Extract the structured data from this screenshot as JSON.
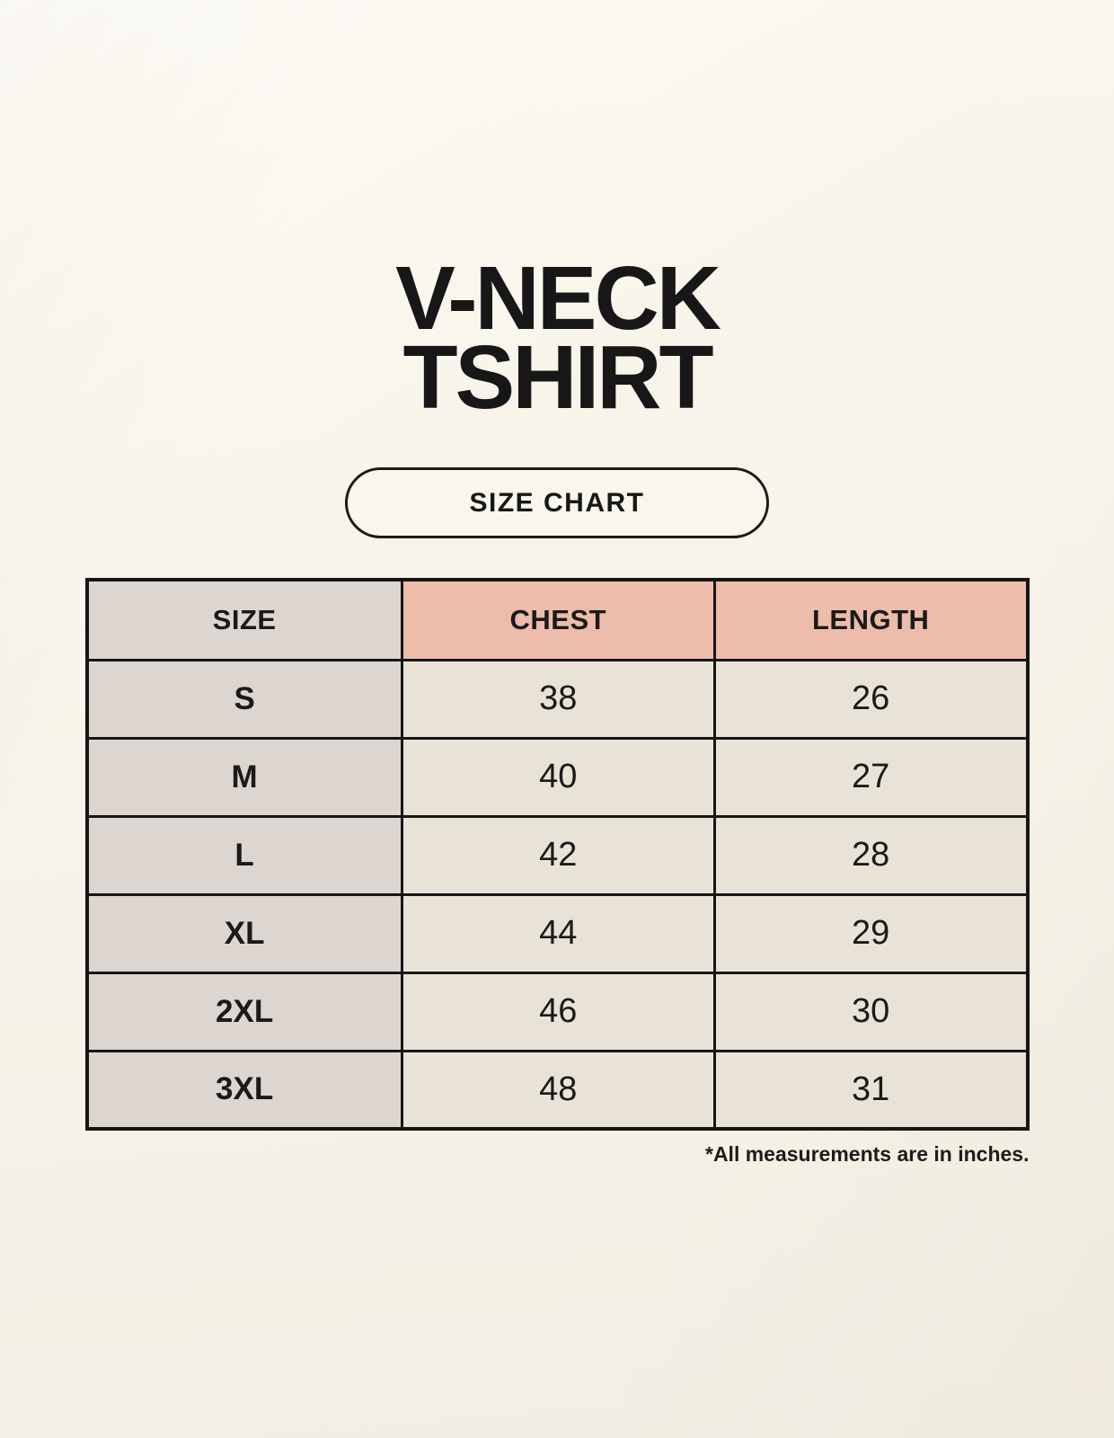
{
  "title": {
    "line1": "V-NECK",
    "line2": "TSHIRT"
  },
  "size_chart_button": {
    "label": "SIZE CHART"
  },
  "table": {
    "headers": [
      "SIZE",
      "CHEST",
      "LENGTH"
    ],
    "rows": [
      {
        "size": "S",
        "chest": "38",
        "length": "26"
      },
      {
        "size": "M",
        "chest": "40",
        "length": "27"
      },
      {
        "size": "L",
        "chest": "42",
        "length": "28"
      },
      {
        "size": "XL",
        "chest": "44",
        "length": "29"
      },
      {
        "size": "2XL",
        "chest": "46",
        "length": "30"
      },
      {
        "size": "3XL",
        "chest": "48",
        "length": "31"
      }
    ]
  },
  "footnote": "*All measurements are in inches.",
  "colors": {
    "background": "#f8f4ea",
    "table_border": "#161616",
    "header_pink": "#eebcab",
    "size_column_gray": "#ddd6d0",
    "value_cell_cream": "#e9e3d7",
    "text": "#1a1a1a"
  },
  "chart_data": {
    "type": "table",
    "title": "V-NECK TSHIRT",
    "subtitle": "SIZE CHART",
    "columns": [
      "SIZE",
      "CHEST",
      "LENGTH"
    ],
    "rows": [
      [
        "S",
        38,
        26
      ],
      [
        "M",
        40,
        27
      ],
      [
        "L",
        42,
        28
      ],
      [
        "XL",
        44,
        29
      ],
      [
        "2XL",
        46,
        30
      ],
      [
        "3XL",
        48,
        31
      ]
    ],
    "note": "*All measurements are in inches.",
    "legend_position": "none",
    "grid": true
  }
}
